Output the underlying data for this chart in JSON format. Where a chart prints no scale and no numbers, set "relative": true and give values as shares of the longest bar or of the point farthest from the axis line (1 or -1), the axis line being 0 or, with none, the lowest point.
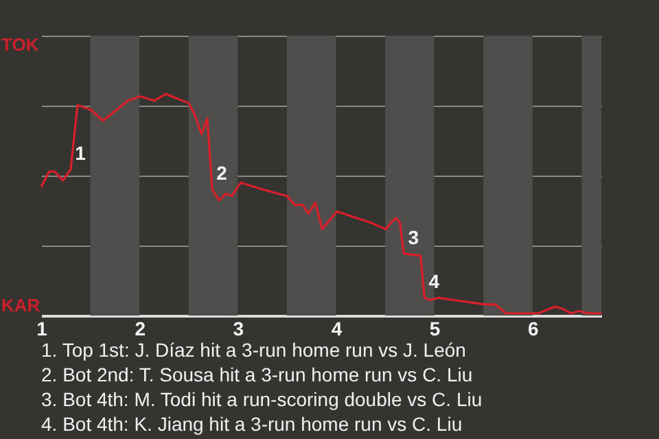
{
  "chart_data": {
    "type": "line",
    "relative": true,
    "x": [
      1,
      1.08,
      1.14,
      1.22,
      1.3,
      1.37,
      1.5,
      1.63,
      1.88,
      2.01,
      2.15,
      2.27,
      2.5,
      2.56,
      2.63,
      2.69,
      2.74,
      2.81,
      2.88,
      2.94,
      3.03,
      3.25,
      3.5,
      3.58,
      3.66,
      3.72,
      3.79,
      3.86,
      4.01,
      4.35,
      4.51,
      4.56,
      4.61,
      4.65,
      4.69,
      4.86,
      4.9,
      4.96,
      5.04,
      5.36,
      5.52,
      5.56,
      5.62,
      5.73,
      5.89,
      6.06,
      6.23,
      6.31,
      6.39,
      6.47,
      6.57,
      6.7
    ],
    "series": [
      {
        "color": "#d9202a",
        "values": [
          0.58,
          0.65,
          0.65,
          0.61,
          0.66,
          0.95,
          0.93,
          0.88,
          0.97,
          0.99,
          0.97,
          1,
          0.96,
          0.91,
          0.82,
          0.89,
          0.57,
          0.52,
          0.55,
          0.54,
          0.6,
          0.57,
          0.54,
          0.5,
          0.5,
          0.46,
          0.51,
          0.39,
          0.47,
          0.42,
          0.39,
          0.42,
          0.44,
          0.42,
          0.28,
          0.27,
          0.08,
          0.07,
          0.08,
          0.06,
          0.05,
          0.05,
          0.05,
          0.01,
          0.01,
          0.01,
          0.04,
          0.03,
          0.01,
          0.02,
          0.01,
          0.01
        ]
      }
    ],
    "xlim": [
      1,
      6.7
    ],
    "xticks": [
      1,
      2,
      3,
      4,
      5,
      6
    ],
    "grid": "y",
    "bands": [
      {
        "axis": "x",
        "from": 1.5,
        "to": 2,
        "color": "#504e4c"
      },
      {
        "axis": "x",
        "from": 2.5,
        "to": 3,
        "color": "#504e4c"
      },
      {
        "axis": "x",
        "from": 3.5,
        "to": 4,
        "color": "#504e4c"
      },
      {
        "axis": "x",
        "from": 4.5,
        "to": 5,
        "color": "#504e4c"
      },
      {
        "axis": "x",
        "from": 5.5,
        "to": 6,
        "color": "#504e4c"
      },
      {
        "axis": "x",
        "from": 6.5,
        "to": 6.7,
        "color": "#504e4c"
      }
    ],
    "annotations": [
      "TOK",
      "KAR",
      {
        "text": "1",
        "x": 1.3,
        "y": 0.66
      },
      {
        "text": "2",
        "x": 2.74,
        "y": 0.57
      },
      {
        "text": "3",
        "x": 4.69,
        "y": 0.28
      },
      {
        "text": "4",
        "x": 4.9,
        "y": 0.08
      },
      "1. Top 1st: J. Díaz hit a 3-run home run vs J. León",
      "2. Bot 2nd: T. Sousa hit a 3-run home run vs C. Liu",
      "3. Bot 4th: M. Todi hit a run-scoring double vs C. Liu",
      "4. Bot 4th: K. Jiang hit a 3-run home run vs C. Liu"
    ]
  }
}
